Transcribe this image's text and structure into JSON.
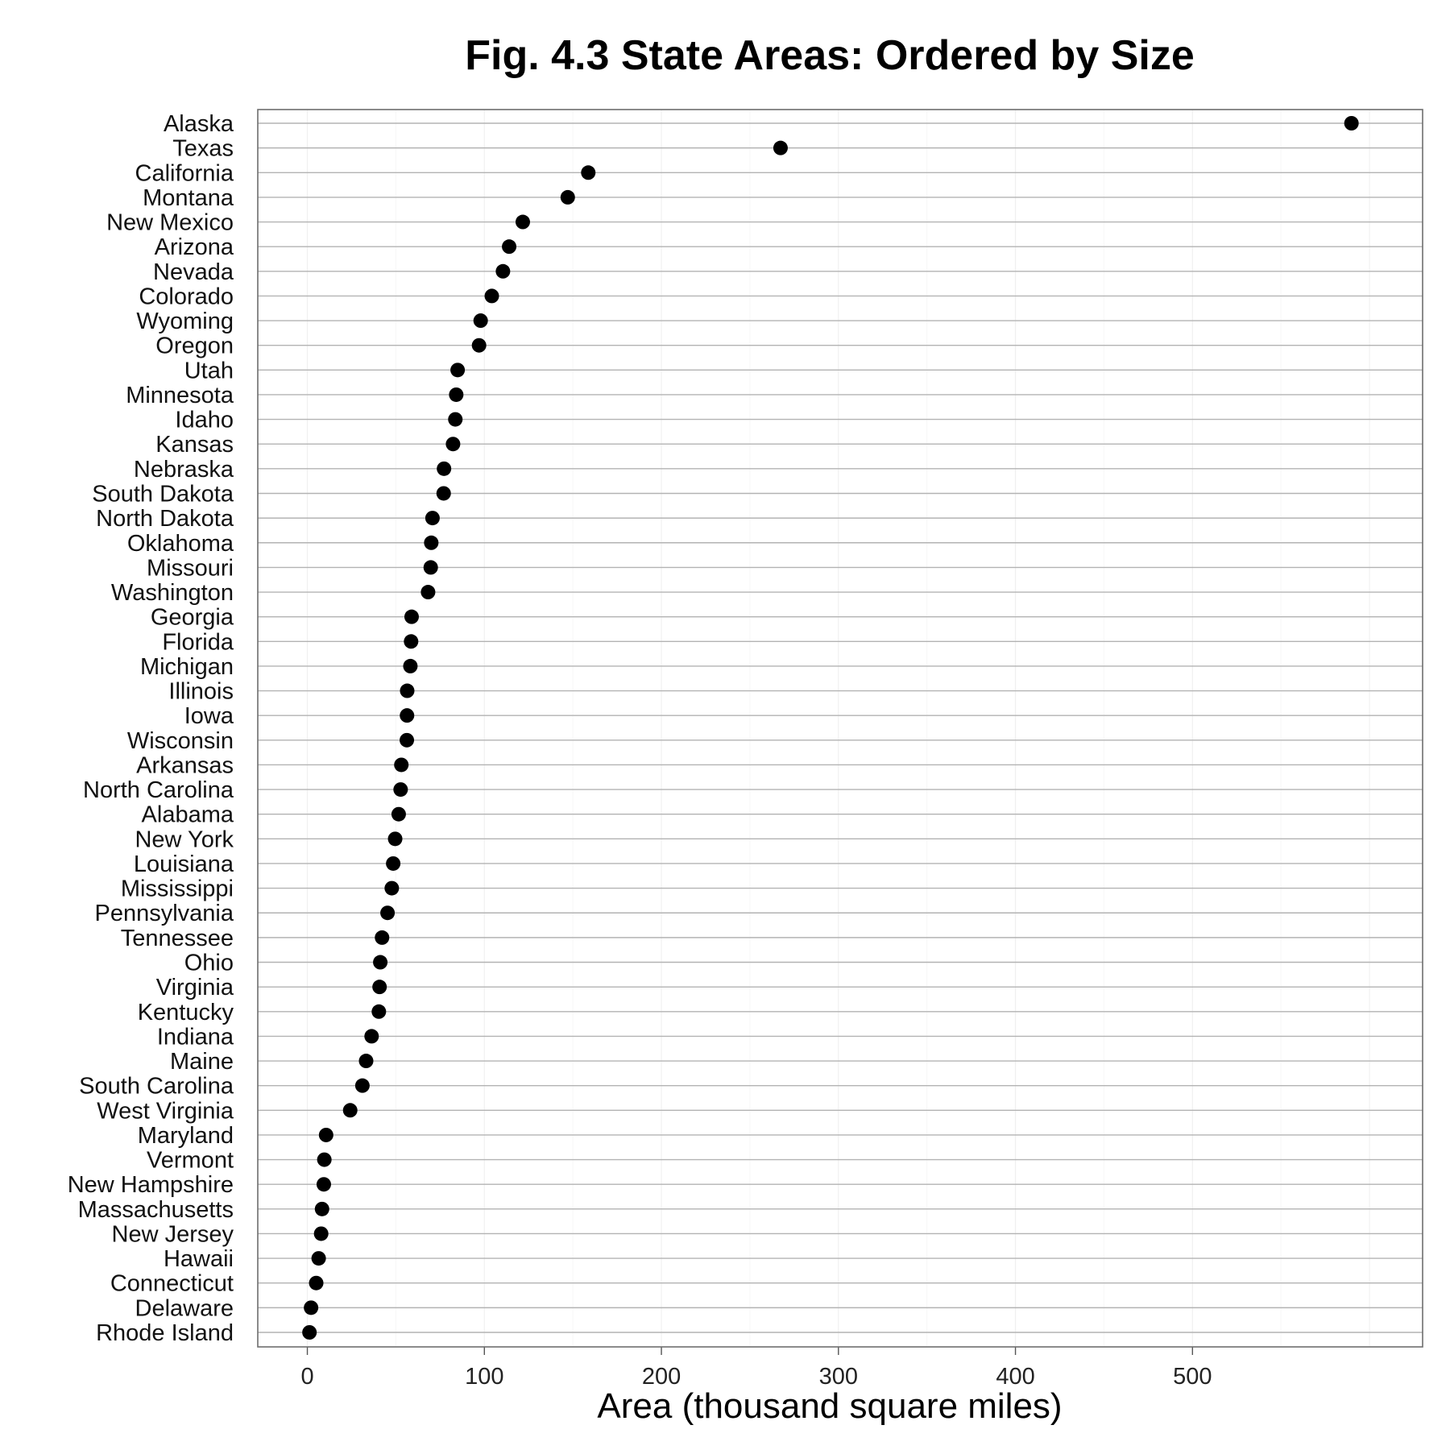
{
  "chart_data": {
    "type": "scatter",
    "title": "Fig. 4.3 State Areas: Ordered by Size",
    "xlabel": "Area (thousand square miles)",
    "ylabel": "",
    "xlim": [
      -28,
      630
    ],
    "xticks": [
      0,
      100,
      200,
      300,
      400,
      500
    ],
    "grid": true,
    "legend": "none",
    "point_color": "#000000",
    "categories": [
      "Alaska",
      "Texas",
      "California",
      "Montana",
      "New Mexico",
      "Arizona",
      "Nevada",
      "Colorado",
      "Wyoming",
      "Oregon",
      "Utah",
      "Minnesota",
      "Idaho",
      "Kansas",
      "Nebraska",
      "South Dakota",
      "North Dakota",
      "Oklahoma",
      "Missouri",
      "Washington",
      "Georgia",
      "Florida",
      "Michigan",
      "Illinois",
      "Iowa",
      "Wisconsin",
      "Arkansas",
      "North Carolina",
      "Alabama",
      "New York",
      "Louisiana",
      "Mississippi",
      "Pennsylvania",
      "Tennessee",
      "Ohio",
      "Virginia",
      "Kentucky",
      "Indiana",
      "Maine",
      "South Carolina",
      "West Virginia",
      "Maryland",
      "Vermont",
      "New Hampshire",
      "Massachusetts",
      "New Jersey",
      "Hawaii",
      "Connecticut",
      "Delaware",
      "Rhode Island"
    ],
    "values": [
      589.8,
      267.3,
      158.7,
      147.1,
      121.7,
      114.0,
      110.5,
      104.2,
      97.9,
      97.0,
      84.9,
      84.1,
      83.6,
      82.3,
      77.2,
      77.0,
      70.7,
      70.0,
      69.7,
      68.2,
      58.9,
      58.6,
      58.2,
      56.4,
      56.3,
      56.2,
      53.1,
      52.7,
      51.6,
      49.6,
      48.5,
      47.7,
      45.3,
      42.2,
      41.2,
      40.8,
      40.4,
      36.3,
      33.2,
      31.1,
      24.2,
      10.6,
      9.6,
      9.3,
      8.3,
      7.8,
      6.4,
      5.0,
      2.1,
      1.2
    ]
  }
}
